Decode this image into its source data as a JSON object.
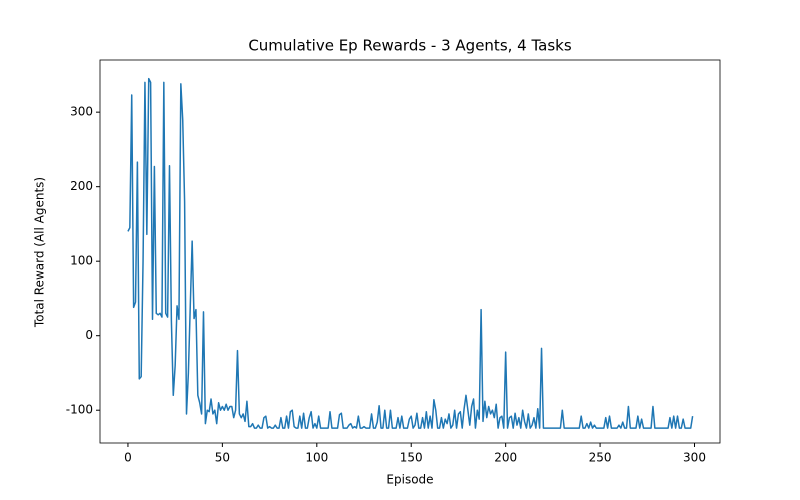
{
  "chart_data": {
    "type": "line",
    "title": "Cumulative Ep Rewards - 3 Agents, 4 Tasks",
    "x_label": "Episode",
    "y_label": "Total Reward (All Agents)",
    "color": "#1f77b4",
    "xlim": [
      -14.8,
      313.5
    ],
    "ylim": [
      -144,
      370
    ],
    "xticks": [
      0,
      50,
      100,
      150,
      200,
      250,
      300
    ],
    "yticks": [
      -100,
      0,
      100,
      200,
      300
    ],
    "x": [
      0,
      1,
      2,
      3,
      4,
      5,
      6,
      7,
      8,
      9,
      10,
      11,
      12,
      13,
      14,
      15,
      16,
      17,
      18,
      19,
      20,
      21,
      22,
      23,
      24,
      25,
      26,
      27,
      28,
      29,
      30,
      31,
      32,
      33,
      34,
      35,
      36,
      37,
      38,
      39,
      40,
      41,
      42,
      43,
      44,
      45,
      46,
      47,
      48,
      49,
      50,
      51,
      52,
      53,
      54,
      55,
      56,
      57,
      58,
      59,
      60,
      61,
      62,
      63,
      64,
      65,
      66,
      67,
      68,
      69,
      70,
      71,
      72,
      73,
      74,
      75,
      76,
      77,
      78,
      79,
      80,
      81,
      82,
      83,
      84,
      85,
      86,
      87,
      88,
      89,
      90,
      91,
      92,
      93,
      94,
      95,
      96,
      97,
      98,
      99,
      100,
      101,
      102,
      103,
      104,
      105,
      106,
      107,
      108,
      109,
      110,
      111,
      112,
      113,
      114,
      115,
      116,
      117,
      118,
      119,
      120,
      121,
      122,
      123,
      124,
      125,
      126,
      127,
      128,
      129,
      130,
      131,
      132,
      133,
      134,
      135,
      136,
      137,
      138,
      139,
      140,
      141,
      142,
      143,
      144,
      145,
      146,
      147,
      148,
      149,
      150,
      151,
      152,
      153,
      154,
      155,
      156,
      157,
      158,
      159,
      160,
      161,
      162,
      163,
      164,
      165,
      166,
      167,
      168,
      169,
      170,
      171,
      172,
      173,
      174,
      175,
      176,
      177,
      178,
      179,
      180,
      181,
      182,
      183,
      184,
      185,
      186,
      187,
      188,
      189,
      190,
      191,
      192,
      193,
      194,
      195,
      196,
      197,
      198,
      199,
      200,
      201,
      202,
      203,
      204,
      205,
      206,
      207,
      208,
      209,
      210,
      211,
      212,
      213,
      214,
      215,
      216,
      217,
      218,
      219,
      220,
      221,
      222,
      223,
      224,
      225,
      226,
      227,
      228,
      229,
      230,
      231,
      232,
      233,
      234,
      235,
      236,
      237,
      238,
      239,
      240,
      241,
      242,
      243,
      244,
      245,
      246,
      247,
      248,
      249,
      250,
      251,
      252,
      253,
      254,
      255,
      256,
      257,
      258,
      259,
      260,
      261,
      262,
      263,
      264,
      265,
      266,
      267,
      268,
      269,
      270,
      271,
      272,
      273,
      274,
      275,
      276,
      277,
      278,
      279,
      280,
      281,
      282,
      283,
      284,
      285,
      286,
      287,
      288,
      289,
      290,
      291,
      292,
      293,
      294,
      295,
      296,
      297,
      298,
      299
    ],
    "values": [
      140,
      145,
      323,
      38,
      45,
      233,
      -58,
      -55,
      100,
      340,
      136,
      345,
      340,
      22,
      227,
      30,
      28,
      30,
      25,
      340,
      30,
      25,
      228,
      20,
      -80,
      -40,
      40,
      22,
      338,
      290,
      180,
      -105,
      -50,
      40,
      127,
      23,
      35,
      -80,
      -90,
      -105,
      32,
      -118,
      -100,
      -102,
      -85,
      -105,
      -100,
      -118,
      -90,
      -100,
      -95,
      -100,
      -92,
      -100,
      -95,
      -95,
      -110,
      -100,
      -20,
      -105,
      -110,
      -105,
      -115,
      -88,
      -122,
      -122,
      -118,
      -124,
      -124,
      -120,
      -124,
      -124,
      -110,
      -108,
      -124,
      -122,
      -124,
      -124,
      -120,
      -124,
      -124,
      -110,
      -124,
      -124,
      -108,
      -124,
      -102,
      -100,
      -122,
      -124,
      -124,
      -108,
      -124,
      -104,
      -124,
      -124,
      -110,
      -102,
      -124,
      -118,
      -124,
      -108,
      -124,
      -124,
      -124,
      -124,
      -124,
      -102,
      -124,
      -124,
      -124,
      -124,
      -106,
      -104,
      -124,
      -124,
      -124,
      -120,
      -118,
      -124,
      -122,
      -124,
      -108,
      -124,
      -124,
      -122,
      -124,
      -124,
      -124,
      -105,
      -124,
      -124,
      -116,
      -94,
      -124,
      -124,
      -100,
      -124,
      -124,
      -100,
      -124,
      -124,
      -124,
      -110,
      -124,
      -108,
      -124,
      -124,
      -124,
      -112,
      -108,
      -124,
      -120,
      -104,
      -124,
      -124,
      -110,
      -124,
      -102,
      -124,
      -108,
      -124,
      -86,
      -100,
      -124,
      -124,
      -110,
      -124,
      -112,
      -118,
      -105,
      -124,
      -120,
      -100,
      -124,
      -105,
      -102,
      -124,
      -98,
      -80,
      -100,
      -120,
      -95,
      -85,
      -124,
      -100,
      -112,
      35,
      -115,
      -88,
      -110,
      -95,
      -105,
      -100,
      -110,
      -92,
      -124,
      -110,
      -108,
      -124,
      -22,
      -124,
      -110,
      -108,
      -124,
      -104,
      -120,
      -110,
      -124,
      -100,
      -115,
      -124,
      -105,
      -124,
      -120,
      -110,
      -124,
      -98,
      -124,
      -17,
      -124,
      -124,
      -124,
      -124,
      -124,
      -124,
      -124,
      -124,
      -124,
      -124,
      -100,
      -124,
      -124,
      -124,
      -124,
      -124,
      -124,
      -124,
      -124,
      -124,
      -108,
      -124,
      -124,
      -118,
      -124,
      -116,
      -124,
      -120,
      -124,
      -124,
      -124,
      -124,
      -124,
      -110,
      -124,
      -108,
      -124,
      -124,
      -124,
      -124,
      -120,
      -124,
      -116,
      -124,
      -124,
      -95,
      -124,
      -124,
      -124,
      -124,
      -108,
      -124,
      -112,
      -124,
      -124,
      -124,
      -124,
      -124,
      -95,
      -124,
      -124,
      -124,
      -124,
      -124,
      -124,
      -124,
      -124,
      -110,
      -124,
      -108,
      -124,
      -108,
      -124,
      -124,
      -112,
      -124,
      -124,
      -124,
      -124,
      -108
    ]
  }
}
